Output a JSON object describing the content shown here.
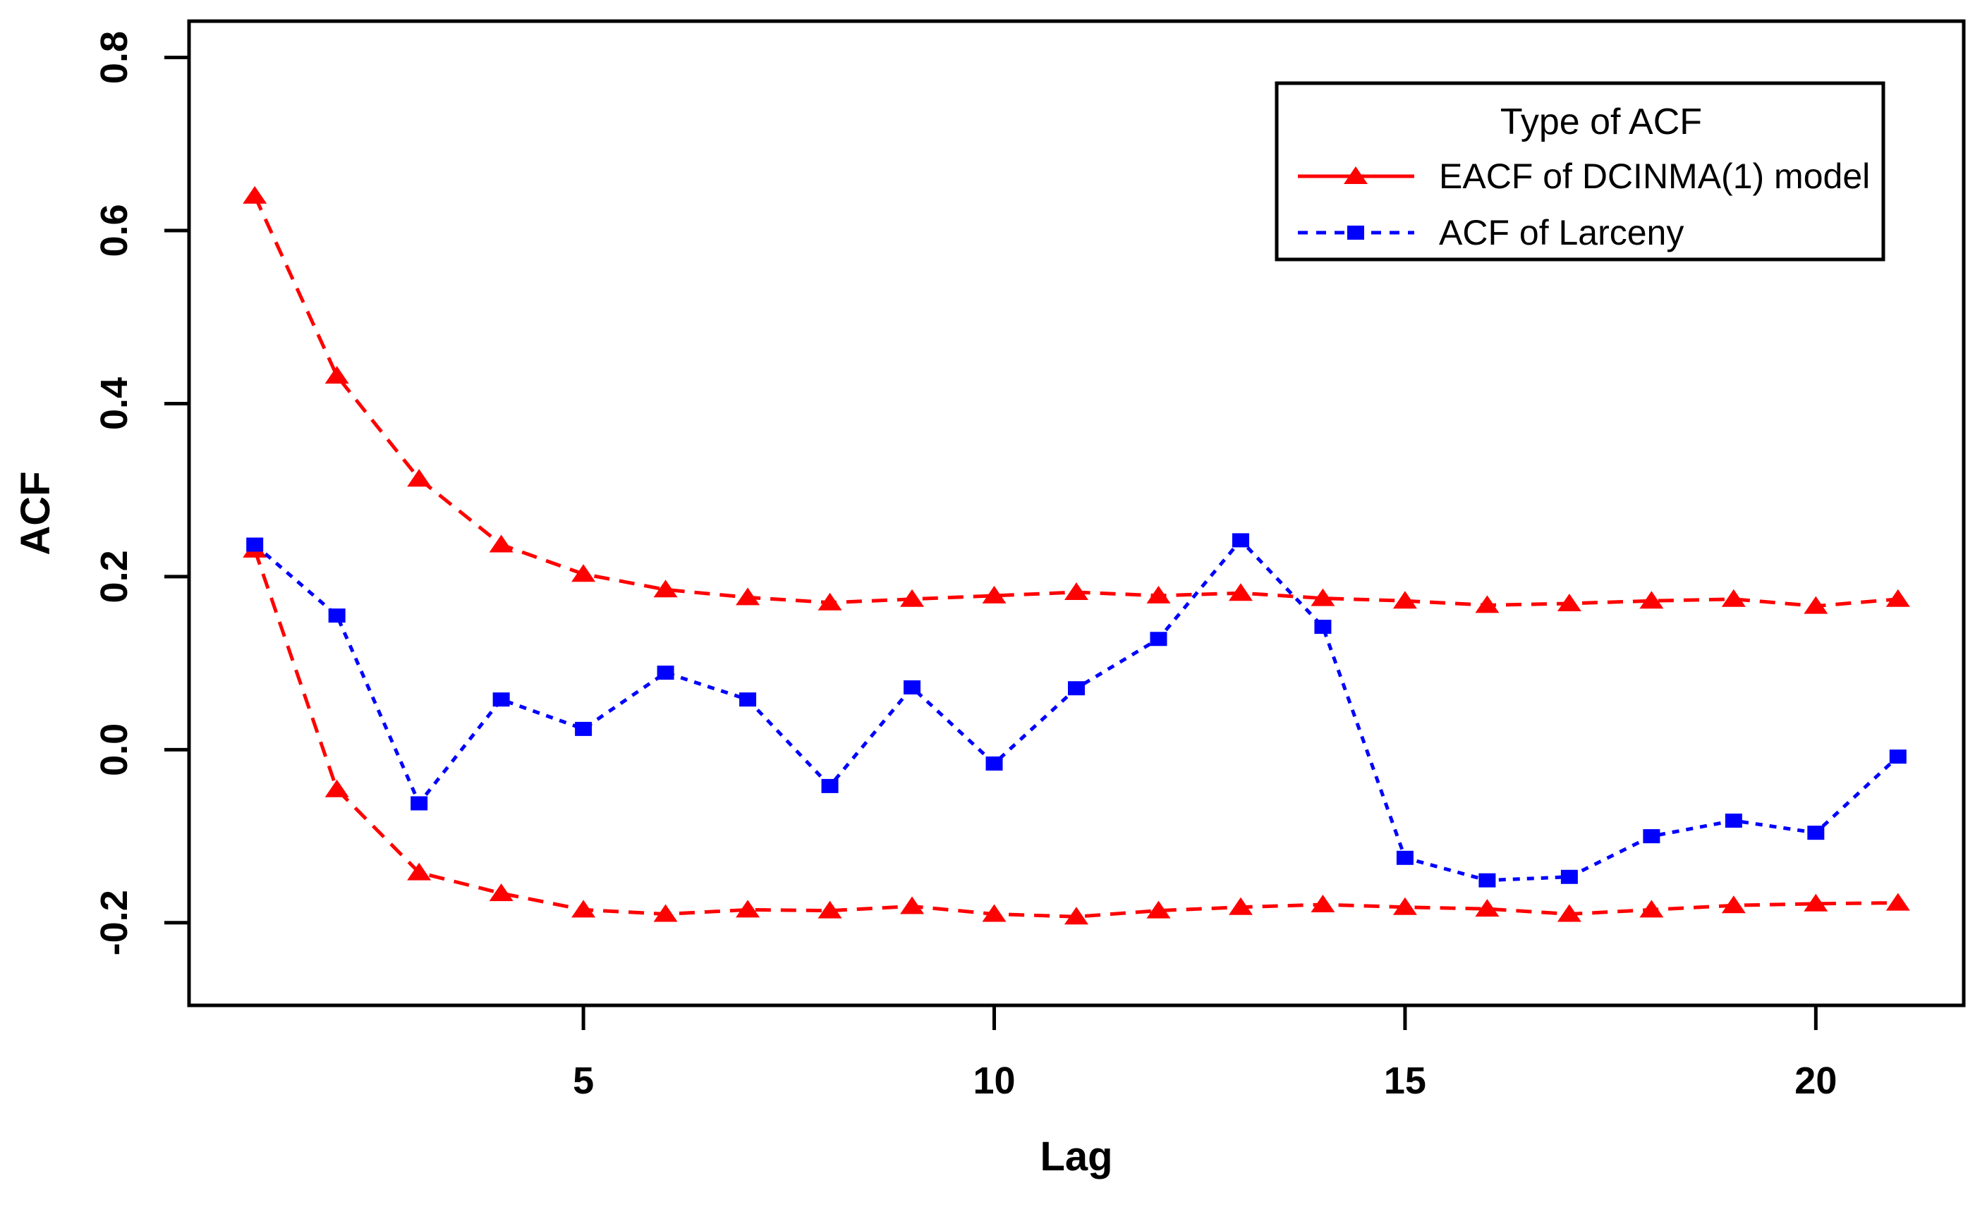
{
  "chart_data": {
    "type": "line",
    "xlabel": "Lag",
    "ylabel": "ACF",
    "x": [
      1,
      2,
      3,
      4,
      5,
      6,
      7,
      8,
      9,
      10,
      11,
      12,
      13,
      14,
      15,
      16,
      17,
      18,
      19,
      20,
      21
    ],
    "series": [
      {
        "name": "eacf-upper",
        "legend_label": "EACF of DCINMA(1) model",
        "color": "#ff0000",
        "marker": "triangle",
        "line_style": "dashed",
        "values": [
          0.64,
          0.432,
          0.313,
          0.237,
          0.203,
          0.185,
          0.176,
          0.17,
          0.174,
          0.178,
          0.182,
          0.178,
          0.181,
          0.175,
          0.172,
          0.167,
          0.169,
          0.172,
          0.174,
          0.166,
          0.174
        ]
      },
      {
        "name": "eacf-lower",
        "legend_label": "EACF of DCINMA(1) model",
        "color": "#ff0000",
        "marker": "triangle",
        "line_style": "dashed",
        "values": [
          0.231,
          -0.046,
          -0.142,
          -0.166,
          -0.185,
          -0.19,
          -0.185,
          -0.186,
          -0.181,
          -0.19,
          -0.193,
          -0.186,
          -0.182,
          -0.179,
          -0.182,
          -0.184,
          -0.19,
          -0.185,
          -0.18,
          -0.178,
          -0.177
        ]
      },
      {
        "name": "acf-larceny",
        "legend_label": "ACF of Larceny",
        "color": "#0000ff",
        "marker": "square",
        "line_style": "dashed",
        "values": [
          0.237,
          0.155,
          -0.062,
          0.058,
          0.024,
          0.089,
          0.058,
          -0.042,
          0.072,
          -0.016,
          0.071,
          0.128,
          0.242,
          0.142,
          -0.125,
          -0.151,
          -0.147,
          -0.1,
          -0.082,
          -0.096,
          -0.008
        ]
      }
    ],
    "x_ticks": [
      5,
      10,
      15,
      20
    ],
    "y_ticks": [
      -0.2,
      0.0,
      0.2,
      0.4,
      0.6,
      0.8
    ],
    "xlim": [
      0.2,
      21.8
    ],
    "ylim": [
      -0.2955,
      0.842
    ],
    "grid": false,
    "legend": {
      "title": "Type of ACF",
      "position": "top-right",
      "entries": [
        {
          "label": "EACF of DCINMA(1) model",
          "color": "#ff0000",
          "marker": "triangle",
          "line_style": "solid"
        },
        {
          "label": "ACF of Larceny",
          "color": "#0000ff",
          "marker": "square",
          "line_style": "dashed"
        }
      ]
    },
    "colors": {
      "background": "#ffffff",
      "axis": "#000000",
      "eacf": "#ff0000",
      "acf": "#0000ff"
    }
  }
}
